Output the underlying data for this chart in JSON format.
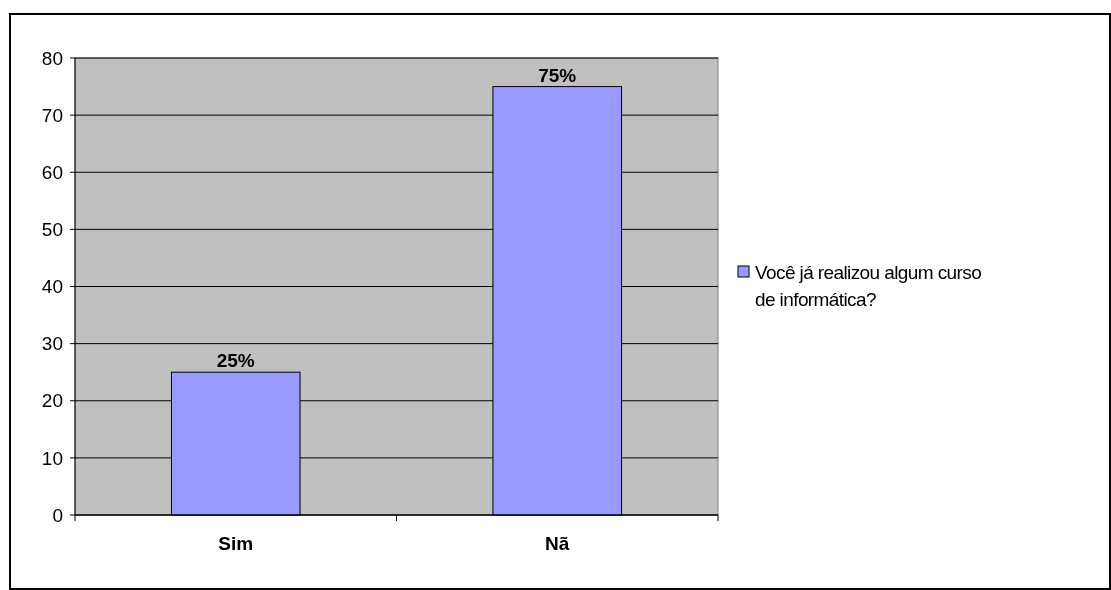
{
  "chart_data": {
    "type": "bar",
    "categories": [
      "Sim",
      "Nã"
    ],
    "series": [
      {
        "name": "Você já realizou algum curso de informática?",
        "color": "#9999ff",
        "values": [
          25,
          75
        ],
        "value_labels": [
          "25%",
          "75%"
        ]
      }
    ],
    "ylim": [
      0,
      80
    ],
    "yticks": [
      0,
      10,
      20,
      30,
      40,
      50,
      60,
      70,
      80
    ],
    "grid": "y",
    "legend": "right"
  }
}
